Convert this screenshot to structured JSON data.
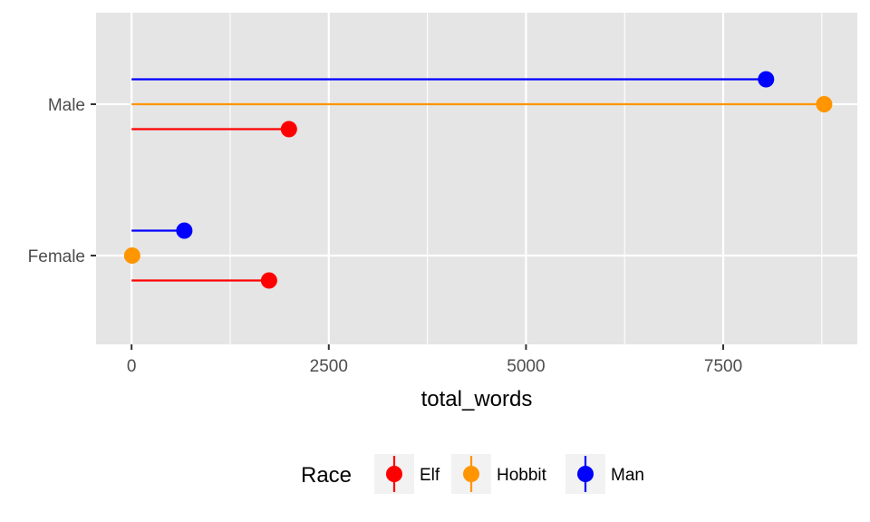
{
  "chart_data": {
    "type": "lollipop",
    "categories": [
      "Female",
      "Male"
    ],
    "xlabel": "total_words",
    "ylabel": "",
    "xlim": [
      -450,
      9200
    ],
    "xticks": [
      0,
      2500,
      5000,
      7500
    ],
    "x_tick_labels": [
      "0",
      "2500",
      "5000",
      "7500"
    ],
    "grid": true,
    "orientation": "horizontal",
    "legend": {
      "title": "Race",
      "position": "bottom",
      "entries": [
        "Elf",
        "Hobbit",
        "Man"
      ]
    },
    "series": [
      {
        "name": "Elf",
        "color": "#ff0000",
        "values": {
          "Female": 1743,
          "Male": 1995
        }
      },
      {
        "name": "Hobbit",
        "color": "#ff9500",
        "values": {
          "Female": 8,
          "Male": 8780
        }
      },
      {
        "name": "Man",
        "color": "#0000ff",
        "values": {
          "Female": 669,
          "Male": 8043
        }
      }
    ],
    "panel_color": "#e5e5e5",
    "grid_color": "#ffffff"
  }
}
